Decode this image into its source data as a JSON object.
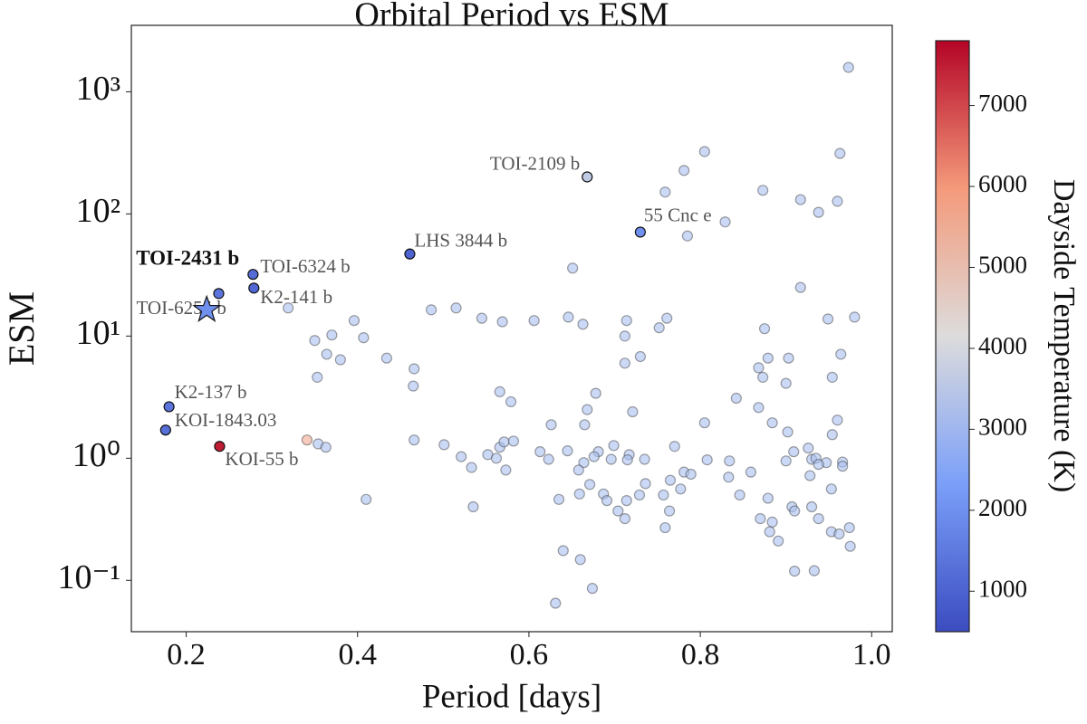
{
  "chart_data": {
    "type": "scatter",
    "title": "Orbital Period vs ESM",
    "x_label": "Period [days]",
    "y_label": "ESM",
    "colorbar_label": "Dayside Temperature (K)",
    "y_log": true,
    "xlim": [
      0.136,
      1.024
    ],
    "ylim": [
      0.038,
      3500
    ],
    "xticks": [
      0.2,
      0.4,
      0.6,
      0.8,
      {
        "value": 1,
        "label": "1.0"
      }
    ],
    "yticks": [
      {
        "value": 0.1,
        "label": "10⁻¹"
      },
      {
        "value": 1,
        "label": "10⁰"
      },
      {
        "value": 10,
        "label": "10¹"
      },
      {
        "value": 100,
        "label": "10²"
      },
      {
        "value": 1000,
        "label": "10³"
      }
    ],
    "clim": [
      500,
      7800
    ],
    "cticks": [
      1000,
      2000,
      3000,
      4000,
      5000,
      6000,
      7000
    ],
    "colormap": [
      "#3b4cc0",
      "#7b9ff9",
      "#dddcdc",
      "#f49a7b",
      "#b40426"
    ],
    "faint": {
      "color": "#a9bff0",
      "x": [
        0.973,
        0.805,
        0.963,
        0.781,
        0.759,
        0.873,
        0.917,
        0.96,
        0.938,
        0.829,
        0.785,
        0.651,
        0.917,
        0.319,
        0.486,
        0.515,
        0.545,
        0.606,
        0.569,
        0.646,
        0.663,
        0.761,
        0.949,
        0.98,
        0.396,
        0.37,
        0.35,
        0.38,
        0.364,
        0.407,
        0.875,
        0.714,
        0.712,
        0.73,
        0.752,
        0.712,
        0.9,
        0.879,
        0.868,
        0.873,
        0.903,
        0.964,
        0.842,
        0.868,
        0.954,
        0.96,
        0.465,
        0.434,
        0.466,
        0.353,
        0.566,
        0.579,
        0.678,
        0.721,
        0.668,
        0.626,
        0.665,
        0.805,
        0.884,
        0.954,
        0.354,
        0.363,
        0.466,
        0.501,
        0.566,
        0.571,
        0.582,
        0.552,
        0.613,
        0.645,
        0.681,
        0.699,
        0.77,
        0.676,
        0.664,
        0.696,
        0.717,
        0.735,
        0.521,
        0.533,
        0.573,
        0.562,
        0.623,
        0.658,
        0.715,
        0.781,
        0.808,
        0.834,
        0.859,
        0.9,
        0.93,
        0.947,
        0.966,
        0.902,
        0.926,
        0.909,
        0.935,
        0.659,
        0.671,
        0.687,
        0.736,
        0.729,
        0.757,
        0.777,
        0.789,
        0.765,
        0.833,
        0.846,
        0.879,
        0.928,
        0.938,
        0.966,
        0.953,
        0.93,
        0.635,
        0.691,
        0.714,
        0.41,
        0.535,
        0.704,
        0.764,
        0.907,
        0.91,
        0.938,
        0.953,
        0.974,
        0.759,
        0.712,
        0.87,
        0.884,
        0.962,
        0.975,
        0.881,
        0.891,
        0.64,
        0.66,
        0.91,
        0.933,
        0.631,
        0.674
      ],
      "y": [
        1585,
        324,
        313,
        227,
        151,
        156,
        131,
        127,
        103,
        86,
        66,
        36,
        25,
        17,
        16.4,
        17,
        14,
        13.4,
        13.1,
        14.3,
        12.5,
        14,
        13.8,
        14.3,
        13.4,
        10.2,
        9.2,
        6.4,
        7.1,
        9.7,
        11.5,
        13.4,
        10,
        6.8,
        11.7,
        6.0,
        4.1,
        6.6,
        5.5,
        4.6,
        6.6,
        7.1,
        3.1,
        2.6,
        4.6,
        2.05,
        3.9,
        6.6,
        5.4,
        4.6,
        3.5,
        2.9,
        3.4,
        2.4,
        2.5,
        1.88,
        1.88,
        1.95,
        1.95,
        1.56,
        1.31,
        1.23,
        1.41,
        1.29,
        1.23,
        1.36,
        1.38,
        1.07,
        1.13,
        1.15,
        1.13,
        1.27,
        1.25,
        1.03,
        0.92,
        0.98,
        1.07,
        0.98,
        1.03,
        0.84,
        0.8,
        1.0,
        0.98,
        0.8,
        0.97,
        0.77,
        0.97,
        0.95,
        0.77,
        0.95,
        0.98,
        0.92,
        0.93,
        1.64,
        1.21,
        1.13,
        1.0,
        0.51,
        0.61,
        0.51,
        0.62,
        0.5,
        0.5,
        0.56,
        0.74,
        0.66,
        0.7,
        0.5,
        0.47,
        0.72,
        0.89,
        0.86,
        0.56,
        0.4,
        0.46,
        0.45,
        0.45,
        0.46,
        0.4,
        0.37,
        0.37,
        0.4,
        0.37,
        0.32,
        0.25,
        0.27,
        0.27,
        0.32,
        0.32,
        0.3,
        0.24,
        0.19,
        0.25,
        0.21,
        0.175,
        0.148,
        0.119,
        0.12,
        0.065,
        0.086
      ]
    },
    "faint_warm": {
      "color": "#f1a892",
      "x": [
        0.341
      ],
      "y": [
        1.41
      ]
    },
    "labeled": {
      "names": [
        "TOI-2109 b",
        "55 Cnc e",
        "LHS 3844 b",
        "TOI-6255 b",
        "TOI-6324 b",
        "K2-141 b",
        "K2-137 b",
        "KOI-1843.03",
        "KOI-55 b"
      ],
      "x": [
        0.668,
        0.73,
        0.461,
        0.238,
        0.278,
        0.279,
        0.18,
        0.176,
        0.239
      ],
      "y": [
        201,
        71,
        47,
        22.3,
        32,
        24.7,
        2.64,
        1.7,
        1.25
      ],
      "temps": [
        3600,
        2000,
        1000,
        1400,
        1200,
        1100,
        1400,
        1300,
        7500
      ]
    },
    "target": {
      "name": "TOI-2431 b",
      "x": 0.224,
      "y": 16.4,
      "temp": 2000
    }
  }
}
